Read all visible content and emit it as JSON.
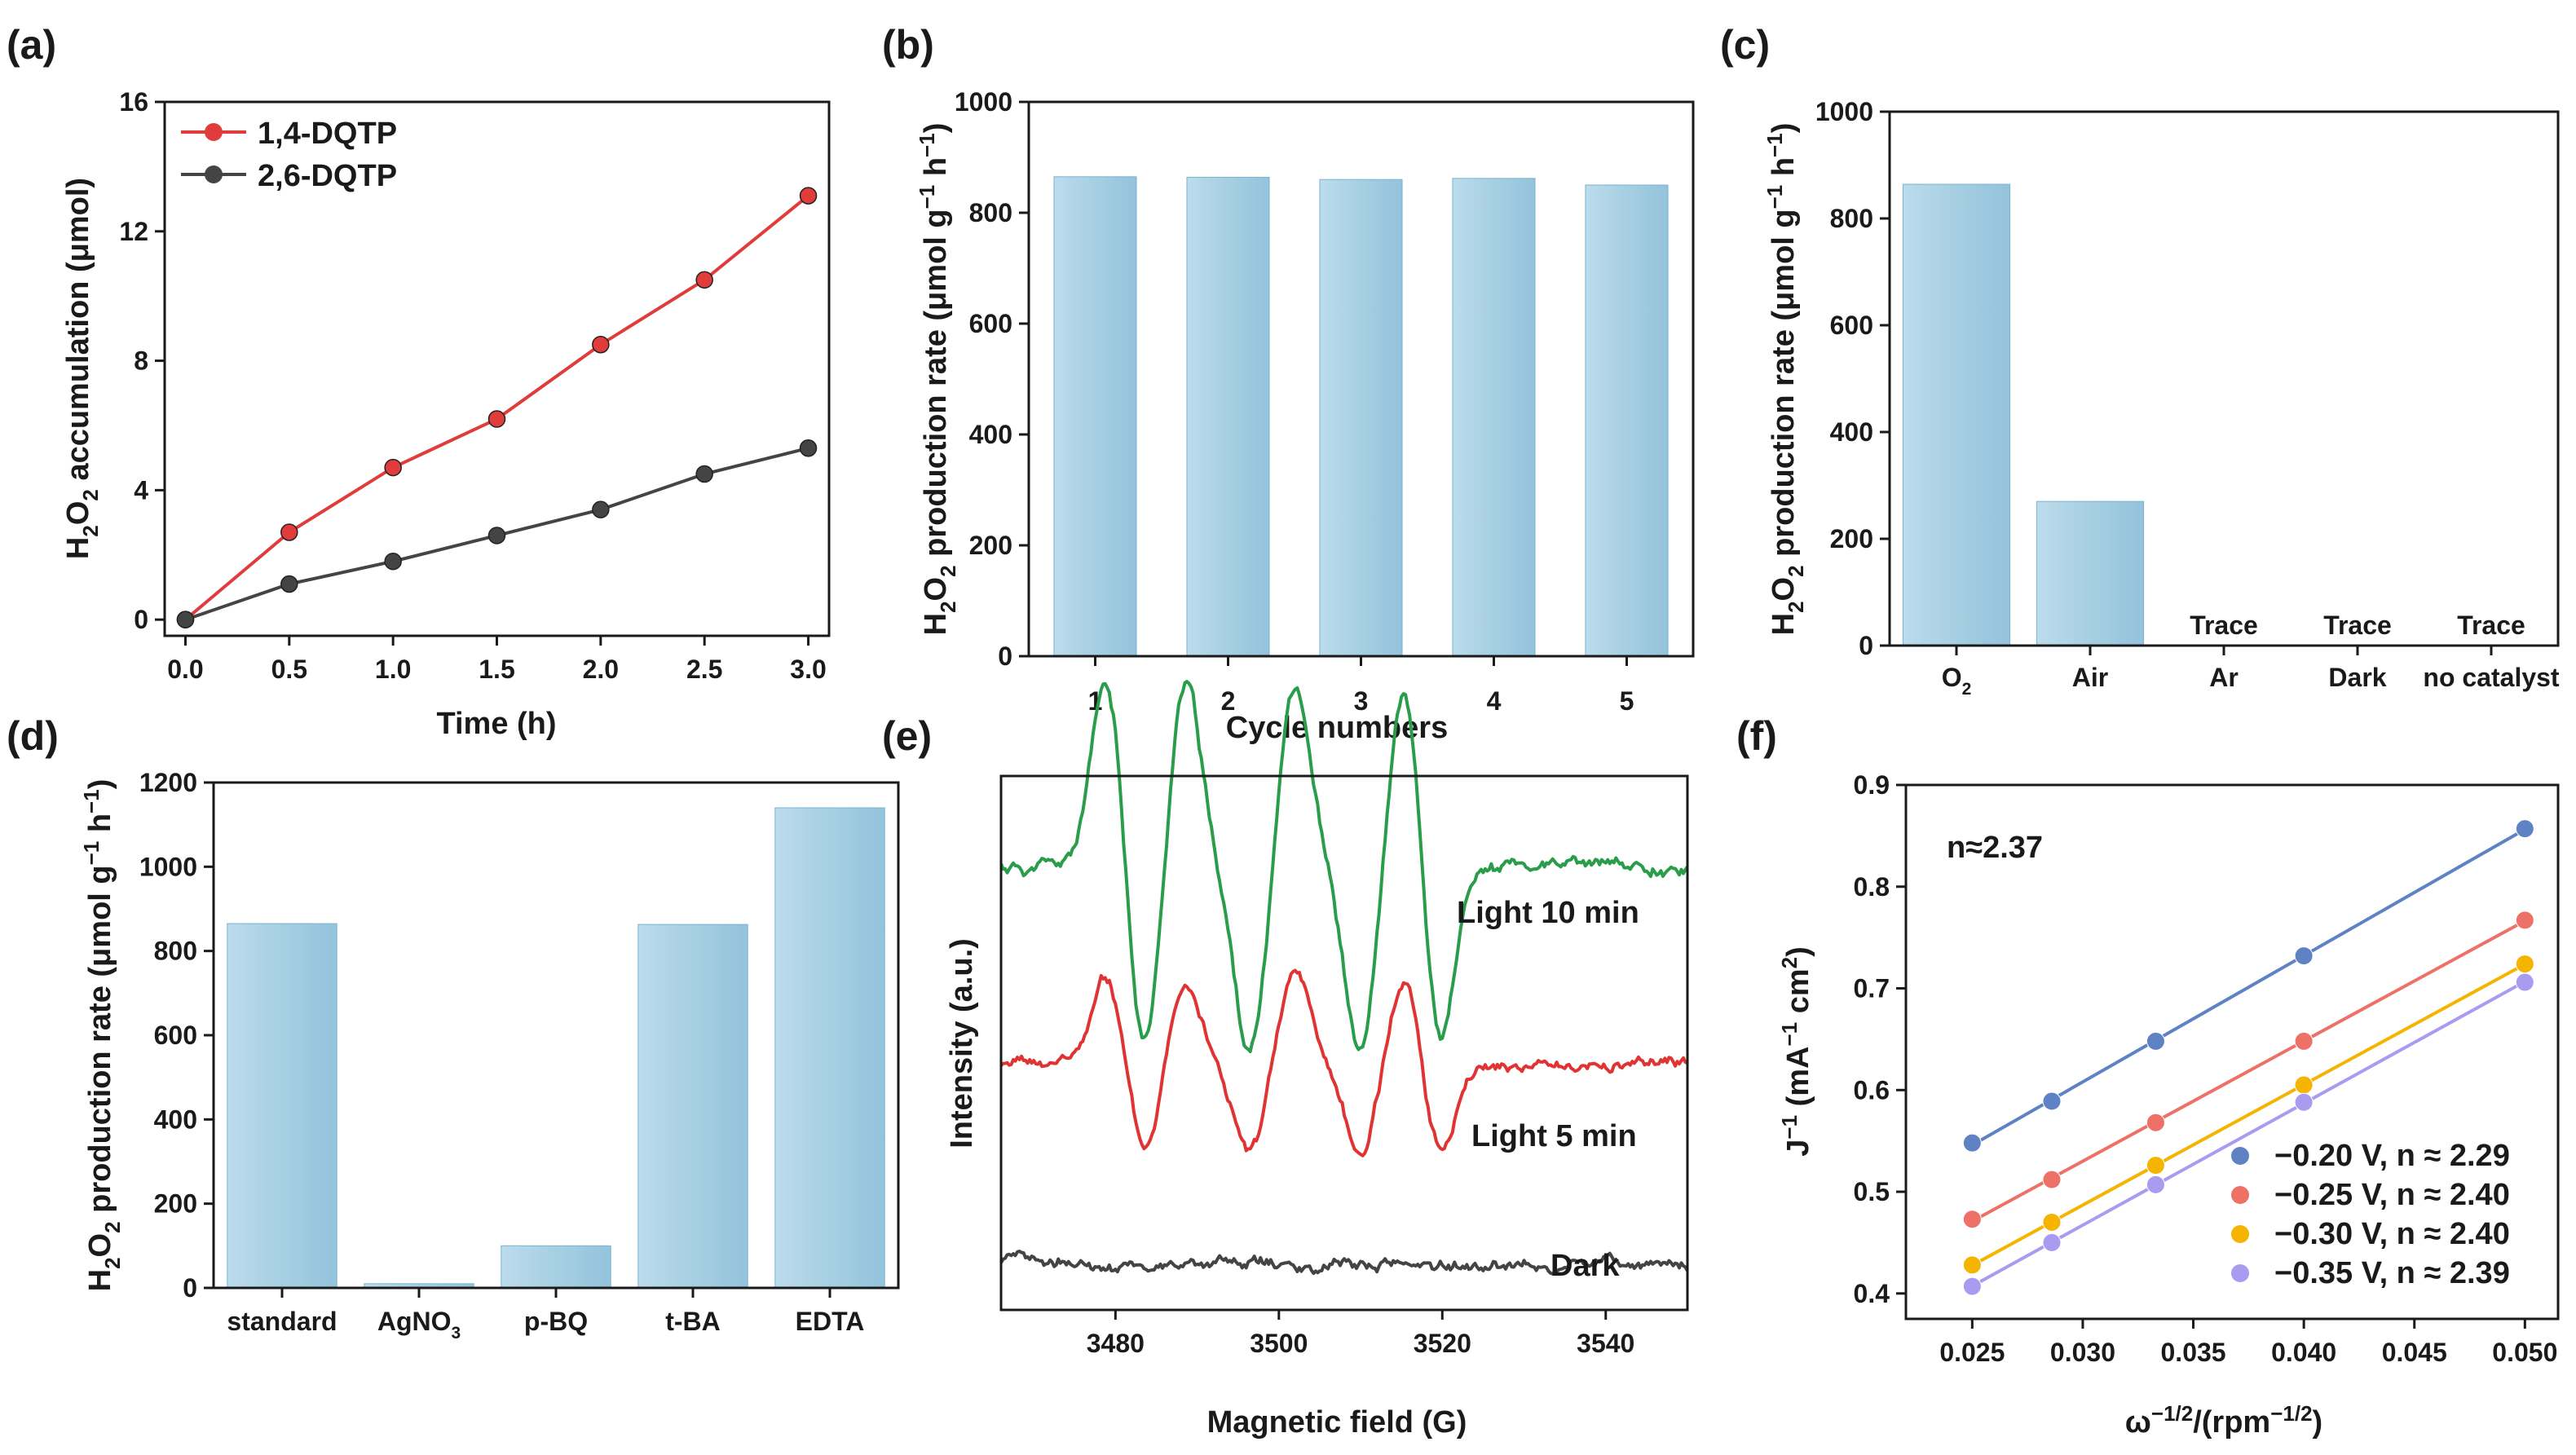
{
  "figure": {
    "panels": {
      "a": {
        "label": "(a)"
      },
      "b": {
        "label": "(b)"
      },
      "c": {
        "label": "(c)"
      },
      "d": {
        "label": "(d)"
      },
      "e": {
        "label": "(e)"
      },
      "f": {
        "label": "(f)"
      }
    },
    "shared_ylabel": {
      "prefix": "H",
      "sub1": "2",
      "mid": "O",
      "sub2": "2",
      "rest": " production rate (μmol g",
      "sup1": "−1",
      "h": " h",
      "sup2": "−1",
      "close": ")"
    }
  },
  "colors": {
    "bar_fill": "#a6cfe2",
    "bar_edge": "#79b3d0",
    "dqtp14": "#e03c3c",
    "dqtp26": "#444444",
    "epr_light10": "#2a9d4a",
    "epr_light5": "#e03434",
    "epr_dark": "#444444",
    "f_s1": "#5f82c4",
    "f_s2": "#ee7167",
    "f_s3": "#f4b400",
    "f_s4": "#a99bf0"
  },
  "chart_data": [
    {
      "panel": "a",
      "type": "line",
      "title": "",
      "xlabel": "Time (h)",
      "ylabel": "H2O2 accumulation (μmol)",
      "ylabel_parts": {
        "h": "H",
        "s1": "2",
        "o": "O",
        "s2": "2",
        "rest": " accumulation (μmol)"
      },
      "x": [
        0.0,
        0.5,
        1.0,
        1.5,
        2.0,
        2.5,
        3.0
      ],
      "xlim": [
        -0.1,
        3.1
      ],
      "ylim": [
        -0.5,
        16
      ],
      "xticks": [
        0.0,
        0.5,
        1.0,
        1.5,
        2.0,
        2.5,
        3.0
      ],
      "xtick_labels": [
        "0.0",
        "0.5",
        "1.0",
        "1.5",
        "2.0",
        "2.5",
        "3.0"
      ],
      "yticks": [
        0,
        4,
        8,
        12,
        16
      ],
      "ytick_labels": [
        "0",
        "4",
        "8",
        "12",
        "16"
      ],
      "legend_position": "top-left",
      "series": [
        {
          "name": "1,4-DQTP",
          "color": "#e03c3c",
          "values": [
            0,
            2.7,
            4.7,
            6.2,
            8.5,
            10.5,
            13.1
          ]
        },
        {
          "name": "2,6-DQTP",
          "color": "#444444",
          "values": [
            0,
            1.1,
            1.8,
            2.6,
            3.4,
            4.5,
            5.3
          ]
        }
      ]
    },
    {
      "panel": "b",
      "type": "bar",
      "title": "",
      "xlabel": "Cycle numbers",
      "ylabel": "H2O2 production rate (μmol g−1 h−1)",
      "categories": [
        "1",
        "2",
        "3",
        "4",
        "5"
      ],
      "values": [
        865,
        864,
        860,
        862,
        850
      ],
      "ylim": [
        0,
        1000
      ],
      "yticks": [
        0,
        200,
        400,
        600,
        800,
        1000
      ],
      "ytick_labels": [
        "0",
        "200",
        "400",
        "600",
        "800",
        "1000"
      ]
    },
    {
      "panel": "c",
      "type": "bar",
      "title": "",
      "xlabel": "",
      "ylabel": "H2O2 production rate (μmol g−1 h−1)",
      "categories": [
        "O2",
        "Air",
        "Ar",
        "Dark",
        "no catalyst"
      ],
      "category_parts": [
        {
          "main": "O",
          "sub": "2"
        },
        {
          "main": "Air"
        },
        {
          "main": "Ar"
        },
        {
          "main": "Dark"
        },
        {
          "main": "no catalyst"
        }
      ],
      "values": [
        864,
        270,
        0,
        0,
        0
      ],
      "bar_annotations": [
        "",
        "",
        "Trace",
        "Trace",
        "Trace"
      ],
      "ylim": [
        0,
        1000
      ],
      "yticks": [
        0,
        200,
        400,
        600,
        800,
        1000
      ],
      "ytick_labels": [
        "0",
        "200",
        "400",
        "600",
        "800",
        "1000"
      ]
    },
    {
      "panel": "d",
      "type": "bar",
      "title": "",
      "xlabel": "",
      "ylabel": "H2O2 production rate (μmol g−1 h−1)",
      "categories": [
        "standard",
        "AgNO3",
        "p-BQ",
        "t-BA",
        "EDTA"
      ],
      "category_parts": [
        {
          "main": "standard"
        },
        {
          "main": "AgNO",
          "sub": "3"
        },
        {
          "main": "p-BQ"
        },
        {
          "main": "t-BA"
        },
        {
          "main": "EDTA"
        }
      ],
      "values": [
        865,
        10,
        100,
        863,
        1140
      ],
      "ylim": [
        0,
        1200
      ],
      "yticks": [
        0,
        200,
        400,
        600,
        800,
        1000,
        1200
      ],
      "ytick_labels": [
        "0",
        "200",
        "400",
        "600",
        "800",
        "1000",
        "1200"
      ]
    },
    {
      "panel": "e",
      "type": "line",
      "title": "",
      "xlabel": "Magnetic field (G)",
      "ylabel": "Intensity (a.u.)",
      "xlim": [
        3466,
        3550
      ],
      "xticks": [
        3480,
        3500,
        3520,
        3540
      ],
      "xtick_labels": [
        "3480",
        "3500",
        "3520",
        "3540"
      ],
      "peak_positions": [
        3479,
        3488.5,
        3502,
        3515.5
      ],
      "trough_positions": [
        3483.5,
        3496.5,
        3510,
        3519.5
      ],
      "series": [
        {
          "name": "Light 10 min",
          "color": "#2a9d4a",
          "baseline": 0.83,
          "amplitude": 0.35,
          "noise": 0.012,
          "seed": 11
        },
        {
          "name": "Light 5 min",
          "color": "#e03434",
          "baseline": 0.46,
          "amplitude": 0.17,
          "noise": 0.01,
          "seed": 23
        },
        {
          "name": "Dark",
          "color": "#444444",
          "baseline": 0.085,
          "amplitude": 0.0,
          "noise": 0.01,
          "seed": 37
        }
      ]
    },
    {
      "panel": "f",
      "type": "scatter",
      "title": "",
      "annotation": "n≈2.37",
      "xlabel": "ω−1/2/(rpm−1/2)",
      "xlabel_parts": {
        "w": "ω",
        "sup1": "−1/2",
        "mid": "/(rpm",
        "sup2": "−1/2",
        "close": ")"
      },
      "ylabel": "J−1 (mA−1 cm2)",
      "ylabel_parts": {
        "j": "J",
        "sup1": "−1",
        "mid": " (mA",
        "sup2": "−1",
        "cm": " cm",
        "sup3": "2",
        "close": ")"
      },
      "x": [
        0.025,
        0.0286,
        0.0333,
        0.04,
        0.05
      ],
      "xlim": [
        0.022,
        0.0515
      ],
      "ylim": [
        0.375,
        0.9
      ],
      "xticks": [
        0.025,
        0.03,
        0.035,
        0.04,
        0.045,
        0.05
      ],
      "xtick_labels": [
        "0.025",
        "0.030",
        "0.035",
        "0.040",
        "0.045",
        "0.050"
      ],
      "yticks": [
        0.4,
        0.5,
        0.6,
        0.7,
        0.8,
        0.9
      ],
      "ytick_labels": [
        "0.4",
        "0.5",
        "0.6",
        "0.7",
        "0.8",
        "0.9"
      ],
      "legend_position": "bottom-right",
      "series": [
        {
          "name": "−0.20 V, n ≈ 2.29",
          "color": "#5f82c4",
          "values": [
            0.548,
            0.589,
            0.648,
            0.732,
            0.857
          ]
        },
        {
          "name": "−0.25 V, n ≈ 2.40",
          "color": "#ee7167",
          "values": [
            0.473,
            0.512,
            0.568,
            0.648,
            0.767
          ]
        },
        {
          "name": "−0.30 V, n ≈ 2.40",
          "color": "#f4b400",
          "values": [
            0.428,
            0.47,
            0.526,
            0.605,
            0.724
          ]
        },
        {
          "name": "−0.35 V, n ≈ 2.39",
          "color": "#a99bf0",
          "values": [
            0.407,
            0.45,
            0.507,
            0.588,
            0.706
          ]
        }
      ]
    }
  ]
}
